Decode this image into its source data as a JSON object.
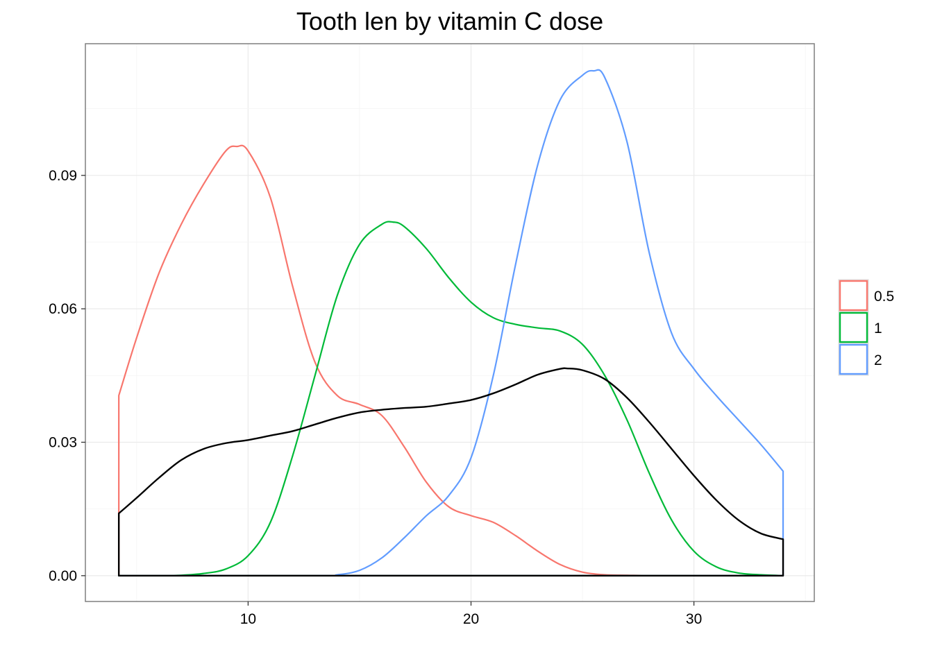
{
  "chart_data": {
    "type": "area",
    "title": "Tooth len by vitamin C dose",
    "xlabel": "",
    "ylabel": "",
    "xlim": [
      2.7,
      35.4
    ],
    "ylim": [
      -0.0058,
      0.1196
    ],
    "x_ticks": [
      10,
      20,
      30
    ],
    "x_tick_labels": [
      "10",
      "20",
      "30"
    ],
    "y_ticks": [
      0,
      0.03,
      0.06,
      0.09
    ],
    "y_tick_labels": [
      "0.00",
      "0.03",
      "0.06",
      "0.09"
    ],
    "grid": true,
    "legend_position": "right",
    "legend": [
      {
        "label": "0.5",
        "color": "#F8766D"
      },
      {
        "label": "1",
        "color": "#00BA38"
      },
      {
        "label": "2",
        "color": "#619CFF"
      }
    ],
    "series": [
      {
        "name": "0.5",
        "color": "#F8766D",
        "x": [
          4.2,
          5,
          6,
          7,
          8,
          9,
          9.5,
          10,
          11,
          12,
          13,
          14,
          15,
          16,
          17,
          18,
          19,
          20,
          21,
          22,
          23,
          24,
          25,
          26,
          27,
          28,
          30,
          34
        ],
        "y": [
          0.0405,
          0.0535,
          0.068,
          0.079,
          0.088,
          0.0955,
          0.0965,
          0.0955,
          0.085,
          0.065,
          0.048,
          0.0405,
          0.0385,
          0.036,
          0.029,
          0.021,
          0.0155,
          0.0135,
          0.012,
          0.009,
          0.0055,
          0.0025,
          0.0008,
          0.0002,
          0.0001,
          0,
          0,
          0
        ]
      },
      {
        "name": "1",
        "color": "#00BA38",
        "x": [
          4.2,
          6,
          7,
          8,
          9,
          10,
          11,
          12,
          13,
          14,
          15,
          16,
          16.5,
          17,
          18,
          19,
          20,
          21,
          22,
          23,
          24,
          25,
          26,
          27,
          28,
          29,
          30,
          31,
          32,
          33,
          34
        ],
        "y": [
          0,
          0,
          0.0001,
          0.0005,
          0.0015,
          0.0045,
          0.012,
          0.027,
          0.045,
          0.063,
          0.0745,
          0.079,
          0.0795,
          0.0785,
          0.0735,
          0.067,
          0.0615,
          0.058,
          0.0565,
          0.0557,
          0.055,
          0.052,
          0.045,
          0.035,
          0.023,
          0.0125,
          0.0055,
          0.002,
          0.0006,
          0.0002,
          0
        ]
      },
      {
        "name": "2",
        "color": "#619CFF",
        "x": [
          4.2,
          13,
          14,
          15,
          16,
          17,
          18,
          19,
          20,
          21,
          22,
          23,
          24,
          25,
          25.5,
          26,
          27,
          28,
          29,
          30,
          31,
          32,
          33,
          34
        ],
        "y": [
          0,
          0,
          0.0002,
          0.0012,
          0.004,
          0.0085,
          0.0135,
          0.018,
          0.0265,
          0.045,
          0.07,
          0.0925,
          0.107,
          0.1125,
          0.1135,
          0.112,
          0.0975,
          0.0725,
          0.0545,
          0.0465,
          0.0405,
          0.035,
          0.0295,
          0.0235
        ]
      },
      {
        "name": "",
        "color": "#000000",
        "x": [
          4.2,
          5,
          6,
          7,
          8,
          9,
          10,
          11,
          12,
          13,
          14,
          15,
          16,
          17,
          18,
          19,
          20,
          21,
          22,
          23,
          24,
          24.3,
          25,
          26,
          27,
          28,
          29,
          30,
          31,
          32,
          33,
          34
        ],
        "y": [
          0.014,
          0.0175,
          0.022,
          0.026,
          0.0285,
          0.0298,
          0.0305,
          0.0315,
          0.0325,
          0.034,
          0.0355,
          0.0367,
          0.0373,
          0.0377,
          0.038,
          0.0387,
          0.0395,
          0.041,
          0.043,
          0.0452,
          0.0465,
          0.0466,
          0.0462,
          0.0442,
          0.04,
          0.0345,
          0.0285,
          0.0225,
          0.017,
          0.0125,
          0.0095,
          0.0082
        ]
      }
    ]
  }
}
